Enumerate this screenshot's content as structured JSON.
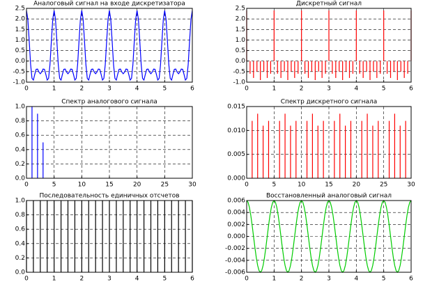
{
  "chart_data": [
    {
      "type": "line",
      "title": "Аналоговый сигнал на входе дискретизатора",
      "color": "#0000ff",
      "grid": true,
      "xlim": [
        0,
        6
      ],
      "xticks": [
        0,
        1,
        2,
        3,
        4,
        5,
        6
      ],
      "ylim": [
        -1,
        2.5
      ],
      "yticks": [
        {
          "value": -1,
          "label": "-1.0"
        },
        -0.5,
        {
          "value": 0,
          "label": "0.0"
        },
        0.5,
        {
          "value": 1,
          "label": "1.0"
        },
        1.5,
        {
          "value": 2,
          "label": "2.0"
        },
        2.5
      ],
      "x": [
        0,
        0.05,
        0.1,
        0.15,
        0.2,
        0.25,
        0.3,
        0.35,
        0.4,
        0.45,
        0.5,
        0.55,
        0.6,
        0.65,
        0.7,
        0.75,
        0.8,
        0.85,
        0.9,
        0.95,
        1,
        1.05,
        1.1,
        1.15,
        1.2,
        1.25,
        1.3,
        1.35,
        1.4,
        1.45,
        1.5,
        1.55,
        1.6,
        1.65,
        1.7,
        1.75,
        1.8,
        1.85,
        1.9,
        1.95,
        2,
        2.05,
        2.1,
        2.15,
        2.2,
        2.25,
        2.3,
        2.35,
        2.4,
        2.45,
        2.5,
        2.55,
        2.6,
        2.65,
        2.7,
        2.75,
        2.8,
        2.85,
        2.9,
        2.95,
        3,
        3.05,
        3.1,
        3.15,
        3.2,
        3.25,
        3.3,
        3.35,
        3.4,
        3.45,
        3.5,
        3.55,
        3.6,
        3.65,
        3.7,
        3.75,
        3.8,
        3.85,
        3.9,
        3.95,
        4,
        4.05,
        4.1,
        4.15,
        4.2,
        4.25,
        4.3,
        4.35,
        4.4,
        4.45,
        4.5,
        4.55,
        4.6,
        4.65,
        4.7,
        4.75,
        4.8,
        4.85,
        4.9,
        4.95,
        5,
        5.05,
        5.1,
        5.15,
        5.2,
        5.25,
        5.3,
        5.35,
        5.4,
        5.45,
        5.5,
        5.55,
        5.6,
        5.65,
        5.7,
        5.75,
        5.8,
        5.85,
        5.9,
        5.95,
        6
      ],
      "values": [
        2.4,
        1.97,
        0.93,
        -0.17,
        -0.82,
        -0.9,
        -0.63,
        -0.39,
        -0.38,
        -0.52,
        -0.6,
        -0.52,
        -0.38,
        -0.39,
        -0.63,
        -0.9,
        -0.82,
        -0.17,
        0.93,
        1.97,
        2.4,
        1.97,
        0.93,
        -0.17,
        -0.82,
        -0.9,
        -0.63,
        -0.39,
        -0.38,
        -0.52,
        -0.6,
        -0.52,
        -0.38,
        -0.39,
        -0.63,
        -0.9,
        -0.82,
        -0.17,
        0.93,
        1.97,
        2.4,
        1.97,
        0.93,
        -0.17,
        -0.82,
        -0.9,
        -0.63,
        -0.39,
        -0.38,
        -0.52,
        -0.6,
        -0.52,
        -0.38,
        -0.39,
        -0.63,
        -0.9,
        -0.82,
        -0.17,
        0.93,
        1.97,
        2.4,
        1.97,
        0.93,
        -0.17,
        -0.82,
        -0.9,
        -0.63,
        -0.39,
        -0.38,
        -0.52,
        -0.6,
        -0.52,
        -0.38,
        -0.39,
        -0.63,
        -0.9,
        -0.82,
        -0.17,
        0.93,
        1.97,
        2.4,
        1.97,
        0.93,
        -0.17,
        -0.82,
        -0.9,
        -0.63,
        -0.39,
        -0.38,
        -0.52,
        -0.6,
        -0.52,
        -0.38,
        -0.39,
        -0.63,
        -0.9,
        -0.82,
        -0.17,
        0.93,
        1.97,
        2.4,
        1.97,
        0.93,
        -0.17,
        -0.82,
        -0.9,
        -0.63,
        -0.39,
        -0.38,
        -0.52,
        -0.6,
        -0.52,
        -0.38,
        -0.39,
        -0.63,
        -0.9,
        -0.82,
        -0.17,
        0.93,
        1.97,
        2.4
      ]
    },
    {
      "type": "stem",
      "title": "Дискретный сигнал",
      "color": "#ff0000",
      "grid": true,
      "xlim": [
        0,
        6
      ],
      "xticks": [
        0,
        1,
        2,
        3,
        4,
        5,
        6
      ],
      "ylim": [
        -1,
        2.5
      ],
      "yticks": [
        {
          "value": -1,
          "label": "-1.0"
        },
        -0.5,
        {
          "value": 0,
          "label": "0.0"
        },
        0.5,
        {
          "value": 1,
          "label": "1.0"
        },
        1.5,
        {
          "value": 2,
          "label": "2.0"
        },
        2.5
      ],
      "x": [
        0,
        0.125,
        0.25,
        0.375,
        0.5,
        0.625,
        0.75,
        0.875,
        1,
        1.125,
        1.25,
        1.375,
        1.5,
        1.625,
        1.75,
        1.875,
        2,
        2.125,
        2.25,
        2.375,
        2.5,
        2.625,
        2.75,
        2.875,
        3,
        3.125,
        3.25,
        3.375,
        3.5,
        3.625,
        3.75,
        3.875,
        4,
        4.125,
        4.25,
        4.375,
        4.5,
        4.625,
        4.75,
        4.875,
        5,
        5.125,
        5.25,
        5.375,
        5.5,
        5.625,
        5.75,
        5.875,
        6
      ],
      "values": [
        2.4,
        -0.6,
        -0.8,
        -0.5,
        -0.9,
        -0.5,
        -0.8,
        -0.6,
        2.4,
        -0.6,
        -0.8,
        -0.5,
        -0.9,
        -0.5,
        -0.8,
        -0.6,
        2.4,
        -0.6,
        -0.8,
        -0.5,
        -0.9,
        -0.5,
        -0.8,
        -0.6,
        2.4,
        -0.6,
        -0.8,
        -0.5,
        -0.9,
        -0.5,
        -0.8,
        -0.6,
        2.4,
        -0.6,
        -0.8,
        -0.5,
        -0.9,
        -0.5,
        -0.8,
        -0.6,
        2.4,
        -0.6,
        -0.8,
        -0.5,
        -0.9,
        -0.5,
        -0.8,
        -0.6,
        2.4
      ]
    },
    {
      "type": "stem",
      "title": "Спектр аналогового сигнала",
      "color": "#0000ff",
      "grid": true,
      "xlim": [
        0,
        30
      ],
      "xticks": [
        0,
        5,
        10,
        15,
        20,
        25,
        30
      ],
      "ylim": [
        0,
        1
      ],
      "yticks": [
        {
          "value": 0,
          "label": "0.0"
        },
        0.2,
        0.4,
        0.6,
        0.8,
        {
          "value": 1,
          "label": "1.0"
        }
      ],
      "x": [
        1,
        2,
        3
      ],
      "values": [
        1,
        0.9,
        0.5
      ]
    },
    {
      "type": "stem",
      "title": "Спектр дискретного сигнала",
      "color": "#ff0000",
      "grid": true,
      "xlim": [
        0,
        30
      ],
      "xticks": [
        0,
        5,
        10,
        15,
        20,
        25,
        30
      ],
      "ylim": [
        0,
        0.015
      ],
      "yticks": [
        {
          "value": 0,
          "label": "0.000"
        },
        0.005,
        {
          "value": 0.01,
          "label": "0.010"
        },
        0.015
      ],
      "x": [
        1,
        2,
        3,
        4,
        6,
        7,
        8,
        9,
        11,
        12,
        13,
        14,
        16,
        17,
        18,
        19,
        21,
        22,
        23,
        24,
        26,
        27,
        28,
        29
      ],
      "values": [
        0.012,
        0.0135,
        0.011,
        0.012,
        0.012,
        0.0135,
        0.011,
        0.012,
        0.012,
        0.0135,
        0.011,
        0.012,
        0.012,
        0.0135,
        0.011,
        0.012,
        0.012,
        0.0135,
        0.011,
        0.012,
        0.012,
        0.0135,
        0.011,
        0.012
      ]
    },
    {
      "type": "stem",
      "title": "Последовательность  единичных отсчетов",
      "color": "#000000",
      "grid": true,
      "xlim": [
        0,
        6
      ],
      "xticks": [
        0,
        1,
        2,
        3,
        4,
        5,
        6
      ],
      "ylim": [
        0,
        1
      ],
      "yticks": [
        {
          "value": 0,
          "label": "0.0"
        },
        0.2,
        0.4,
        0.6,
        0.8,
        {
          "value": 1,
          "label": "1.0"
        }
      ],
      "x": [
        0,
        0.25,
        0.5,
        0.75,
        1,
        1.25,
        1.5,
        1.75,
        2,
        2.25,
        2.5,
        2.75,
        3,
        3.25,
        3.5,
        3.75,
        4,
        4.25,
        4.5,
        4.75,
        5,
        5.25,
        5.5,
        5.75,
        6
      ],
      "values": [
        1,
        1,
        1,
        1,
        1,
        1,
        1,
        1,
        1,
        1,
        1,
        1,
        1,
        1,
        1,
        1,
        1,
        1,
        1,
        1,
        1,
        1,
        1,
        1,
        1
      ]
    },
    {
      "type": "line",
      "title": "Восстановленный аналоговый сигнал",
      "color": "#00cc00",
      "grid": true,
      "xlim": [
        0,
        6
      ],
      "xticks": [
        0,
        1,
        2,
        3,
        4,
        5,
        6
      ],
      "ylim": [
        -0.006,
        0.006
      ],
      "yticks": [
        -0.006,
        -0.004,
        -0.002,
        {
          "value": 0,
          "label": "0.000"
        },
        0.002,
        0.004,
        0.006
      ],
      "x": [
        0,
        0.05,
        0.1,
        0.15,
        0.2,
        0.25,
        0.3,
        0.35,
        0.4,
        0.45,
        0.5,
        0.55,
        0.6,
        0.65,
        0.7,
        0.75,
        0.8,
        0.85,
        0.9,
        0.95,
        1,
        1.05,
        1.1,
        1.15,
        1.2,
        1.25,
        1.3,
        1.35,
        1.4,
        1.45,
        1.5,
        1.55,
        1.6,
        1.65,
        1.7,
        1.75,
        1.8,
        1.85,
        1.9,
        1.95,
        2,
        2.05,
        2.1,
        2.15,
        2.2,
        2.25,
        2.3,
        2.35,
        2.4,
        2.45,
        2.5,
        2.55,
        2.6,
        2.65,
        2.7,
        2.75,
        2.8,
        2.85,
        2.9,
        2.95,
        3,
        3.05,
        3.1,
        3.15,
        3.2,
        3.25,
        3.3,
        3.35,
        3.4,
        3.45,
        3.5,
        3.55,
        3.6,
        3.65,
        3.7,
        3.75,
        3.8,
        3.85,
        3.9,
        3.95,
        4,
        4.05,
        4.1,
        4.15,
        4.2,
        4.25,
        4.3,
        4.35,
        4.4,
        4.45,
        4.5,
        4.55,
        4.6,
        4.65,
        4.7,
        4.75,
        4.8,
        4.85,
        4.9,
        4.95,
        5,
        5.05,
        5.1,
        5.15,
        5.2,
        5.25,
        5.3,
        5.35,
        5.4,
        5.45,
        5.5,
        5.55,
        5.6,
        5.65,
        5.7,
        5.75,
        5.8,
        5.85,
        5.9,
        5.95,
        6
      ],
      "values": [
        0.006,
        0.0057,
        0.00485,
        0.00353,
        0.00185,
        0,
        -0.00185,
        -0.00353,
        -0.00485,
        -0.0057,
        -0.006,
        -0.0057,
        -0.00485,
        -0.00353,
        -0.00185,
        0,
        0.00185,
        0.00353,
        0.00485,
        0.0057,
        0.006,
        0.0057,
        0.00485,
        0.00353,
        0.00185,
        0,
        -0.00185,
        -0.00353,
        -0.00485,
        -0.0057,
        -0.006,
        -0.0057,
        -0.00485,
        -0.00353,
        -0.00185,
        0,
        0.00185,
        0.00353,
        0.00485,
        0.0057,
        0.006,
        0.0057,
        0.00485,
        0.00353,
        0.00185,
        0,
        -0.00185,
        -0.00353,
        -0.00485,
        -0.0057,
        -0.006,
        -0.0057,
        -0.00485,
        -0.00353,
        -0.00185,
        0,
        0.00185,
        0.00353,
        0.00485,
        0.0057,
        0.006,
        0.0057,
        0.00485,
        0.00353,
        0.00185,
        0,
        -0.00185,
        -0.00353,
        -0.00485,
        -0.0057,
        -0.006,
        -0.0057,
        -0.00485,
        -0.00353,
        -0.00185,
        0,
        0.00185,
        0.00353,
        0.00485,
        0.0057,
        0.006,
        0.0057,
        0.00485,
        0.00353,
        0.00185,
        0,
        -0.00185,
        -0.00353,
        -0.00485,
        -0.0057,
        -0.006,
        -0.0057,
        -0.00485,
        -0.00353,
        -0.00185,
        0,
        0.00185,
        0.00353,
        0.00485,
        0.0057,
        0.006,
        0.0057,
        0.00485,
        0.00353,
        0.00185,
        0,
        -0.00185,
        -0.00353,
        -0.00485,
        -0.0057,
        -0.006,
        -0.0057,
        -0.00485,
        -0.00353,
        -0.00185,
        0,
        0.00185,
        0.00353,
        0.00485,
        0.0057,
        0.006
      ]
    }
  ]
}
